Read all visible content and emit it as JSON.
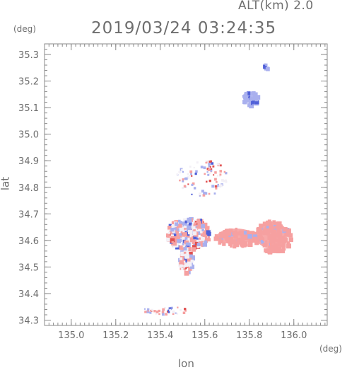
{
  "header": {
    "altitude_label": "ALT(km)  2.0",
    "timestamp": "2019/03/24 03:24:35"
  },
  "axes": {
    "y_unit": "(deg)",
    "x_unit": "(deg)",
    "x_title": "lon",
    "y_title": "lat",
    "x_range": [
      134.88,
      136.15
    ],
    "y_range": [
      34.28,
      35.34
    ],
    "x_ticks": [
      {
        "value": 135.0,
        "label": "135.0"
      },
      {
        "value": 135.2,
        "label": "135.2"
      },
      {
        "value": 135.4,
        "label": "135.4"
      },
      {
        "value": 135.6,
        "label": "135.6"
      },
      {
        "value": 135.8,
        "label": "135.8"
      },
      {
        "value": 136.0,
        "label": "136.0"
      }
    ],
    "y_ticks": [
      {
        "value": 34.3,
        "label": "34.3"
      },
      {
        "value": 34.4,
        "label": "34.4"
      },
      {
        "value": 34.5,
        "label": "34.5"
      },
      {
        "value": 34.6,
        "label": "34.6"
      },
      {
        "value": 34.7,
        "label": "34.7"
      },
      {
        "value": 34.8,
        "label": "34.8"
      },
      {
        "value": 34.9,
        "label": "34.9"
      },
      {
        "value": 35.0,
        "label": "35.0"
      },
      {
        "value": 35.1,
        "label": "35.1"
      },
      {
        "value": 35.2,
        "label": "35.2"
      },
      {
        "value": 35.3,
        "label": "35.3"
      }
    ],
    "minor_step": 0.02
  },
  "colors": {
    "axis": "#8a8a8a",
    "positive": "#f6a0a0",
    "positive_strong": "#e05050",
    "negative": "#a9b0ee",
    "negative_strong": "#5060d8",
    "neutral": "#f3f0f6"
  },
  "echo_regions": [
    {
      "name": "east-positive-blob",
      "lon": 135.9,
      "lat": 34.62,
      "rlon": 0.085,
      "rlat": 0.06,
      "tone": "positive",
      "count": 140
    },
    {
      "name": "east-positive-tail",
      "lon": 135.74,
      "lat": 34.615,
      "rlon": 0.1,
      "rlat": 0.035,
      "tone": "positive",
      "count": 120
    },
    {
      "name": "central-mixed",
      "lon": 135.52,
      "lat": 34.63,
      "rlon": 0.1,
      "rlat": 0.06,
      "tone": "mixed",
      "count": 260
    },
    {
      "name": "southern-mixed",
      "lon": 135.51,
      "lat": 34.53,
      "rlon": 0.03,
      "rlat": 0.05,
      "tone": "mixed",
      "count": 70
    },
    {
      "name": "northern-scatter",
      "lon": 135.58,
      "lat": 34.84,
      "rlon": 0.12,
      "rlat": 0.07,
      "tone": "sparse",
      "count": 90
    },
    {
      "name": "north-negative-patch",
      "lon": 135.8,
      "lat": 35.14,
      "rlon": 0.035,
      "rlat": 0.025,
      "tone": "negative",
      "count": 45
    },
    {
      "name": "far-north-dot",
      "lon": 135.87,
      "lat": 35.26,
      "rlon": 0.01,
      "rlat": 0.008,
      "tone": "negative",
      "count": 6
    },
    {
      "name": "south-strip",
      "lon": 135.42,
      "lat": 34.34,
      "rlon": 0.1,
      "rlat": 0.015,
      "tone": "sparse",
      "count": 40
    }
  ]
}
